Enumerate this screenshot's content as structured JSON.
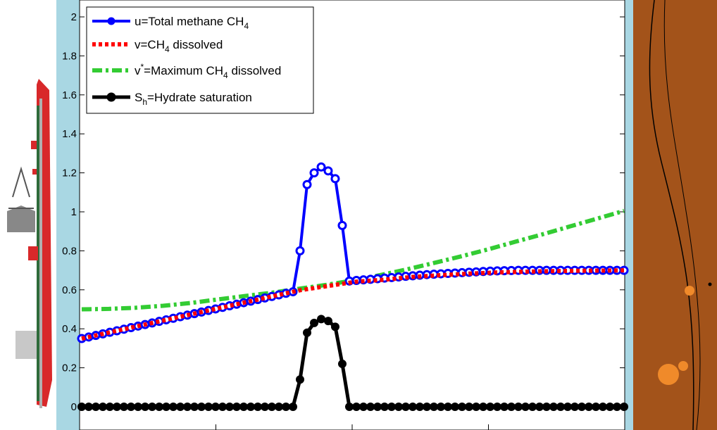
{
  "chart_data": {
    "type": "line",
    "title": "",
    "xlabel": "",
    "ylabel": "",
    "ylim": [
      0,
      2.1
    ],
    "y_ticks": [
      "0",
      "0.2",
      "0.4",
      "0.6",
      "0.8",
      "1",
      "1.2",
      "1.4",
      "1.6",
      "1.8",
      "2"
    ],
    "x_tick_count": 5,
    "grid": false,
    "legend_position": "top-left",
    "series": [
      {
        "key": "u",
        "name_main": "u=Total methane CH",
        "name_sub": "4",
        "color": "#0000ff",
        "style": "solid-with-circle-markers",
        "x": [
          0.0,
          0.013,
          0.026,
          0.039,
          0.0519,
          0.0649,
          0.0779,
          0.0909,
          0.1039,
          0.1169,
          0.1299,
          0.1429,
          0.1558,
          0.1688,
          0.1818,
          0.1948,
          0.2078,
          0.2208,
          0.2338,
          0.2468,
          0.2597,
          0.2727,
          0.2857,
          0.2987,
          0.3117,
          0.3247,
          0.3377,
          0.3506,
          0.3636,
          0.3766,
          0.3896,
          0.4026,
          0.4156,
          0.4286,
          0.4416,
          0.4545,
          0.4675,
          0.4805,
          0.4935,
          0.5065,
          0.5195,
          0.5325,
          0.5455,
          0.5584,
          0.5714,
          0.5844,
          0.5974,
          0.6104,
          0.6234,
          0.6364,
          0.6494,
          0.6623,
          0.6753,
          0.6883,
          0.7013,
          0.7143,
          0.7273,
          0.7403,
          0.7532,
          0.7662,
          0.7792,
          0.7922,
          0.8052,
          0.8182,
          0.8312,
          0.8442,
          0.8571,
          0.8701,
          0.8831,
          0.8961,
          0.9091,
          0.9221,
          0.9351,
          0.9481,
          0.961,
          0.974,
          0.987,
          1.0
        ],
        "values": [
          0.35,
          0.358,
          0.366,
          0.374,
          0.382,
          0.39,
          0.398,
          0.406,
          0.414,
          0.422,
          0.43,
          0.438,
          0.446,
          0.454,
          0.462,
          0.47,
          0.478,
          0.486,
          0.494,
          0.502,
          0.51,
          0.518,
          0.526,
          0.534,
          0.542,
          0.55,
          0.558,
          0.566,
          0.574,
          0.582,
          0.59,
          0.8,
          1.14,
          1.2,
          1.23,
          1.21,
          1.17,
          0.93,
          0.645,
          0.648,
          0.651,
          0.654,
          0.657,
          0.66,
          0.663,
          0.666,
          0.669,
          0.672,
          0.675,
          0.678,
          0.68,
          0.682,
          0.684,
          0.686,
          0.688,
          0.69,
          0.692,
          0.694,
          0.696,
          0.697,
          0.698,
          0.699,
          0.7,
          0.7,
          0.7,
          0.7,
          0.7,
          0.7,
          0.7,
          0.7,
          0.7,
          0.7,
          0.7,
          0.7,
          0.7,
          0.7,
          0.7,
          0.7
        ]
      },
      {
        "key": "v",
        "name_main": "v=CH",
        "name_sub": "4",
        "name_tail": " dissolved",
        "color": "#ff0000",
        "style": "dotted",
        "x": [
          0.0,
          0.0519,
          0.1039,
          0.1558,
          0.2078,
          0.2597,
          0.3117,
          0.3636,
          0.4026,
          0.4545,
          0.5065,
          0.5584,
          0.6104,
          0.6623,
          0.7143,
          0.7662,
          0.8182,
          0.8701,
          0.9221,
          0.974,
          1.0
        ],
        "values": [
          0.35,
          0.382,
          0.414,
          0.446,
          0.478,
          0.51,
          0.542,
          0.574,
          0.598,
          0.62,
          0.642,
          0.652,
          0.666,
          0.675,
          0.683,
          0.689,
          0.693,
          0.696,
          0.698,
          0.699,
          0.7
        ]
      },
      {
        "key": "vstar",
        "name_main": "v",
        "name_sup": "*",
        "name_tail": "=Maximum CH",
        "name_sub": "4",
        "name_tail2": " dissolved",
        "color": "#33cc33",
        "style": "dash-dot",
        "x": [
          0.0,
          0.05,
          0.1,
          0.15,
          0.2,
          0.25,
          0.3,
          0.35,
          0.4,
          0.45,
          0.5,
          0.55,
          0.6,
          0.65,
          0.7,
          0.75,
          0.8,
          0.85,
          0.9,
          0.95,
          1.0
        ],
        "values": [
          0.5,
          0.502,
          0.508,
          0.518,
          0.532,
          0.55,
          0.568,
          0.585,
          0.605,
          0.625,
          0.648,
          0.675,
          0.705,
          0.738,
          0.772,
          0.808,
          0.847,
          0.885,
          0.925,
          0.965,
          1.005
        ]
      },
      {
        "key": "sh",
        "name_main": "S",
        "name_sub": "h",
        "name_tail": "=Hydrate saturation",
        "color": "#000000",
        "style": "solid-with-circle-markers",
        "x": [
          0.0,
          0.013,
          0.026,
          0.039,
          0.0519,
          0.0649,
          0.0779,
          0.0909,
          0.1039,
          0.1169,
          0.1299,
          0.1429,
          0.1558,
          0.1688,
          0.1818,
          0.1948,
          0.2078,
          0.2208,
          0.2338,
          0.2468,
          0.2597,
          0.2727,
          0.2857,
          0.2987,
          0.3117,
          0.3247,
          0.3377,
          0.3506,
          0.3636,
          0.3766,
          0.3896,
          0.4026,
          0.4156,
          0.4286,
          0.4416,
          0.4545,
          0.4675,
          0.4805,
          0.4935,
          0.5065,
          0.5195,
          0.5325,
          0.5455,
          0.5584,
          0.5714,
          0.5844,
          0.5974,
          0.6104,
          0.6234,
          0.6364,
          0.6494,
          0.6623,
          0.6753,
          0.6883,
          0.7013,
          0.7143,
          0.7273,
          0.7403,
          0.7532,
          0.7662,
          0.7792,
          0.7922,
          0.8052,
          0.8182,
          0.8312,
          0.8442,
          0.8571,
          0.8701,
          0.8831,
          0.8961,
          0.9091,
          0.9221,
          0.9351,
          0.9481,
          0.961,
          0.974,
          0.987,
          1.0
        ],
        "values": [
          0,
          0,
          0,
          0,
          0,
          0,
          0,
          0,
          0,
          0,
          0,
          0,
          0,
          0,
          0,
          0,
          0,
          0,
          0,
          0,
          0,
          0,
          0,
          0,
          0,
          0,
          0,
          0,
          0,
          0,
          0,
          0,
          0,
          0,
          0,
          0,
          0,
          0,
          0,
          0,
          0,
          0,
          0,
          0,
          0,
          0,
          0,
          0,
          0,
          0,
          0,
          0,
          0,
          0,
          0,
          0,
          0,
          0,
          0,
          0,
          0,
          0,
          0,
          0,
          0,
          0,
          0,
          0,
          0,
          0,
          0,
          0,
          0,
          0,
          0,
          0,
          0,
          0
        ]
      }
    ],
    "sh_peak": {
      "x": [
        0.4026,
        0.4156,
        0.4286,
        0.4416,
        0.4545,
        0.4675,
        0.4805,
        0.4935
      ],
      "values": [
        0.14,
        0.38,
        0.43,
        0.45,
        0.44,
        0.41,
        0.22,
        0.0
      ]
    }
  }
}
